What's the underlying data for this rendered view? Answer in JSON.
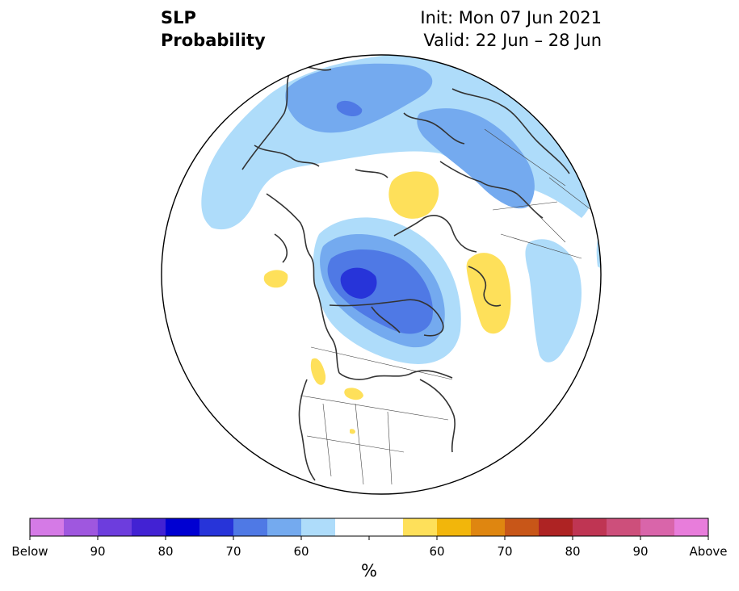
{
  "title": {
    "left_line1": "SLP",
    "left_line2": "Probability",
    "right_line1": "Init: Mon 07 Jun 2021",
    "right_line2": "Valid: 22 Jun – 28 Jun"
  },
  "colorbar": {
    "unit": "%",
    "colors": [
      "#d57ae6",
      "#9f57df",
      "#6d3ddd",
      "#4222d3",
      "#0000d2",
      "#2734d9",
      "#4f79e5",
      "#74aaef",
      "#aedcfa",
      "#ffffff",
      "#ffffff",
      "#fee05a",
      "#f2b60b",
      "#df8610",
      "#c85618",
      "#ae2323",
      "#bf3553",
      "#cd4f7b",
      "#d965aa",
      "#e87ddb"
    ],
    "tick_labels": [
      "Below",
      "90",
      "80",
      "70",
      "60",
      "60",
      "70",
      "80",
      "90",
      "Above"
    ]
  },
  "palette": {
    "blue_light": "#aedcfa",
    "blue_medium": "#74aaef",
    "blue_darker": "#4f79e5",
    "blue_deep": "#2734d9",
    "yellow": "#fee05a",
    "coast": "#333333"
  }
}
